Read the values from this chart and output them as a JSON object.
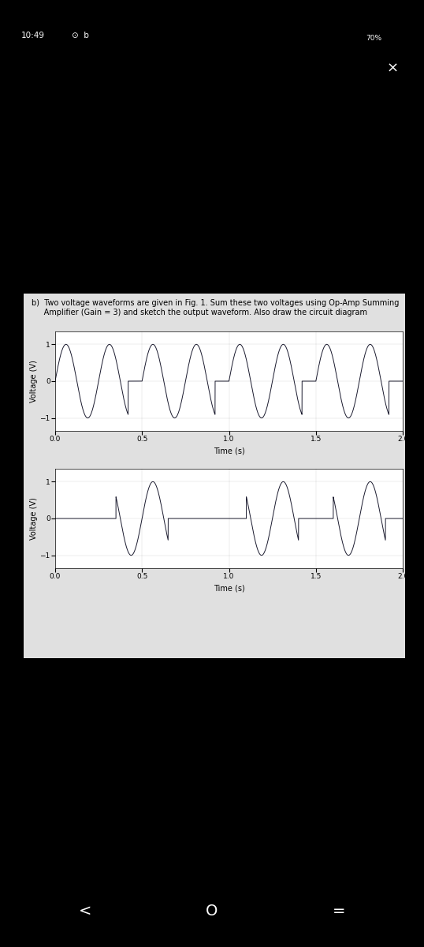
{
  "title_text": "b)  Two voltage waveforms are given in Fig. 1. Sum these two voltages using Op-Amp Summing\n     Amplifier (Gain = 3) and sketch the output waveform. Also draw the circuit diagram",
  "xlabel": "Time (s)",
  "ylabel": "Voltage (V)",
  "xlim": [
    0,
    2
  ],
  "yticks": [
    -1,
    0,
    1
  ],
  "xticks": [
    0,
    0.5,
    1,
    1.5,
    2
  ],
  "line_color": "#1a1a2e",
  "outer_bg": "#000000",
  "panel_bg": "#e0e0e0",
  "plot_bg": "#ffffff",
  "text_color": "#000000",
  "font_size_label": 7,
  "font_size_tick": 6.5,
  "status_time": "10:49",
  "status_right": "70%",
  "nav_left": "<",
  "nav_mid": "O",
  "nav_right": "="
}
